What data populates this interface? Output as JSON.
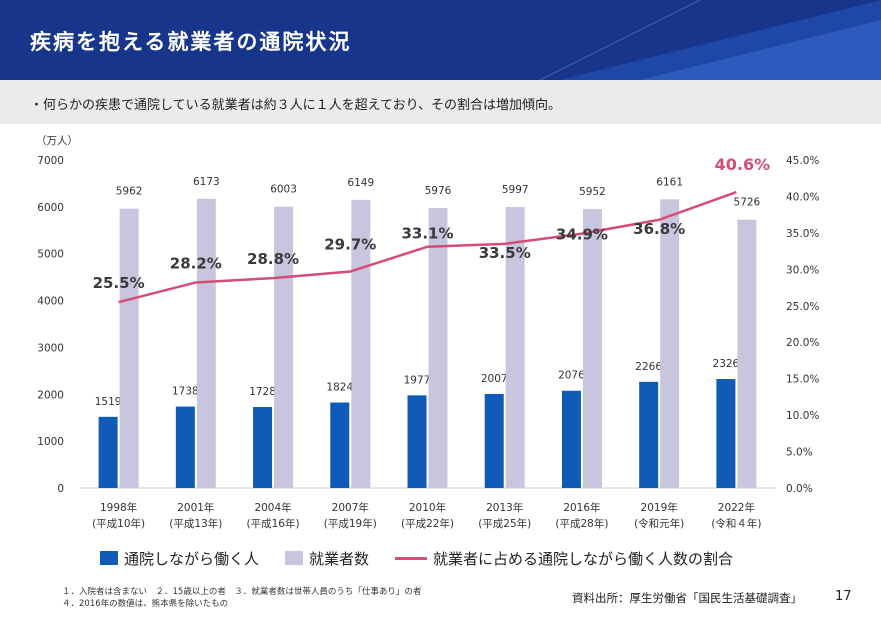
{
  "header": {
    "title": "疾病を抱える就業者の通院状況",
    "bg_color": "#17358a",
    "accent_color": "#2a5bc8"
  },
  "summary": {
    "text": "・何らかの疾患で通院している就業者は約３人に１人を超えており、その割合は増加傾向。"
  },
  "chart_data": {
    "type": "bar",
    "title": "",
    "y_unit_label": "（万人）",
    "categories": [
      [
        "1998年",
        "(平成10年)"
      ],
      [
        "2001年",
        "(平成13年)"
      ],
      [
        "2004年",
        "(平成16年)"
      ],
      [
        "2007年",
        "(平成19年)"
      ],
      [
        "2010年",
        "(平成22年)"
      ],
      [
        "2013年",
        "(平成25年)"
      ],
      [
        "2016年",
        "(平成28年)"
      ],
      [
        "2019年",
        "(令和元年)"
      ],
      [
        "2022年",
        "(令和４年)"
      ]
    ],
    "y_ticks": [
      "0",
      "1000",
      "2000",
      "3000",
      "4000",
      "5000",
      "6000",
      "7000"
    ],
    "y2_ticks": [
      "0.0%",
      "5.0%",
      "10.0%",
      "15.0%",
      "20.0%",
      "25.0%",
      "30.0%",
      "35.0%",
      "40.0%",
      "45.0%"
    ],
    "ylim": [
      0,
      7000
    ],
    "y2lim": [
      0,
      45
    ],
    "grid": false,
    "legend_position": "bottom",
    "series": [
      {
        "name": "通院しながら働く人",
        "kind": "bar",
        "color": "#0f5bb5",
        "values": [
          1519,
          1738,
          1728,
          1824,
          1977,
          2007,
          2076,
          2266,
          2326
        ],
        "labels": [
          "1519",
          "1738",
          "1728",
          "1824",
          "1977",
          "2007",
          "2076",
          "2266",
          "2326"
        ]
      },
      {
        "name": "就業者数",
        "kind": "bar",
        "color": "#c8c6de",
        "values": [
          5962,
          6173,
          6003,
          6149,
          5976,
          5997,
          5952,
          6161,
          5726
        ],
        "labels": [
          "5962",
          "6173",
          "6003",
          "6149",
          "5976",
          "5997",
          "5952",
          "6161",
          "5726"
        ]
      },
      {
        "name": "就業者に占める通院しながら働く人数の割合",
        "kind": "line",
        "color": "#d44d75",
        "axis": "right",
        "values": [
          25.5,
          28.2,
          28.8,
          29.7,
          33.1,
          33.5,
          34.9,
          36.8,
          40.6
        ],
        "labels": [
          "25.5%",
          "28.2%",
          "28.8%",
          "29.7%",
          "33.1%",
          "33.5%",
          "34.9%",
          "36.8%",
          "40.6%"
        ]
      }
    ]
  },
  "notes": [
    "１．入院者は含まない　２．15歳以上の者　３．就業者数は世帯人員のうち「仕事あり」の者",
    "４．2016年の数値は、熊本県を除いたもの"
  ],
  "source": "資料出所：厚生労働省「国民生活基礎調査」",
  "page_number": "17"
}
